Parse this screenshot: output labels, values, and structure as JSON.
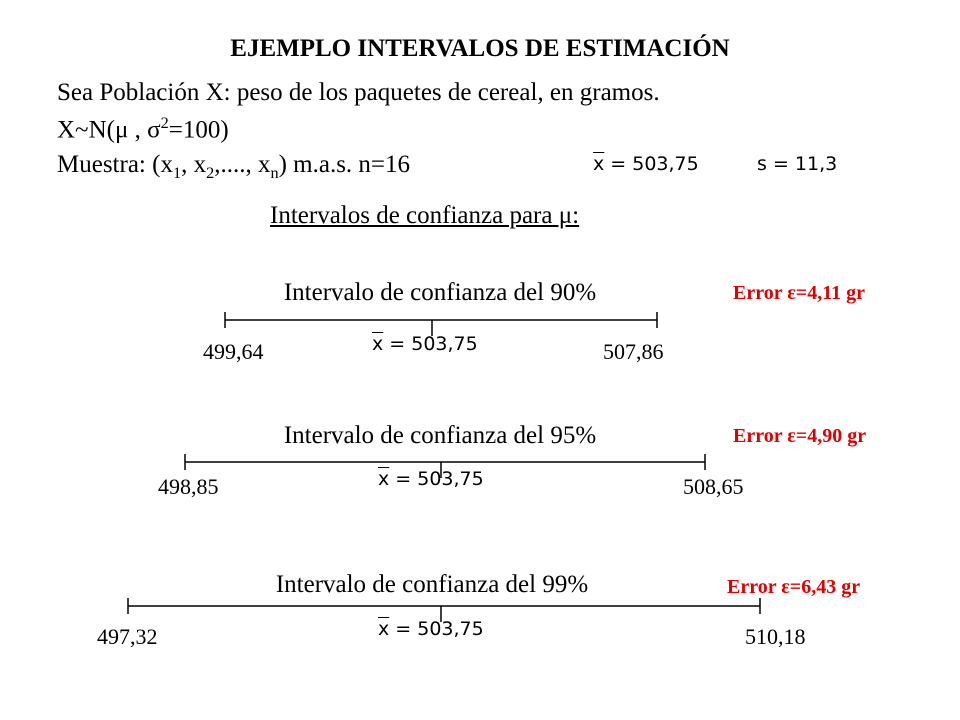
{
  "header": {
    "title": "EJEMPLO INTERVALOS DE ESTIMACIÓN"
  },
  "intro": {
    "line1": "Sea Población X: peso de los paquetes de cereal, en gramos.",
    "line2": [
      "X~N(μ , σ",
      "2",
      "=100)"
    ],
    "line3": [
      "Muestra: (x",
      "1",
      ", x",
      "2",
      ",...., x",
      "n",
      ") m.a.s.  n=16"
    ],
    "mean_symbol": "x",
    "mean_value": " = 503,75",
    "sd": "s = 11,3"
  },
  "subtitle": "Intervalos de confianza para μ:",
  "intervals": [
    {
      "label": "Intervalo de confianza  del 90%",
      "error": "Error ε=4,11 gr",
      "lower": "499,64",
      "upper": "507,86"
    },
    {
      "label": "Intervalo de confianza  del 95%",
      "error": "Error ε=4,90 gr",
      "lower": "498,85",
      "upper": "508,65"
    },
    {
      "label": "Intervalo de confianza  del 99%",
      "error": "Error ε=6,43 gr",
      "lower": "497,32",
      "upper": "510,18"
    }
  ]
}
